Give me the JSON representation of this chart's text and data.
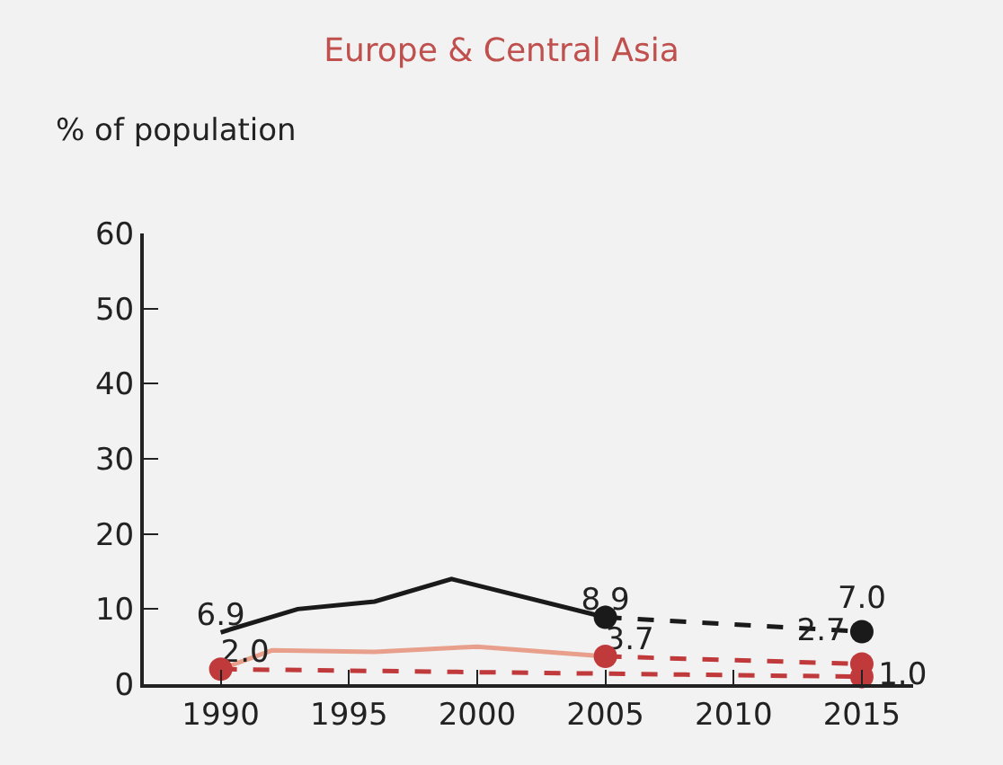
{
  "chart_data": {
    "type": "line",
    "title": "Europe & Central Asia",
    "ylabel": "% of population",
    "xlim": [
      1987,
      2017
    ],
    "xticks": [
      1990,
      1995,
      2000,
      2005,
      2010,
      2015
    ],
    "ylim": [
      0,
      60
    ],
    "yticks": [
      0,
      10,
      20,
      30,
      40,
      50,
      60
    ],
    "grid": false,
    "series": [
      {
        "color": "#1a1a1a",
        "line_style": "solid",
        "marker": "none",
        "x": [
          1990,
          1993,
          1996,
          1999,
          2005
        ],
        "values": [
          6.9,
          10,
          11,
          14,
          8.9
        ],
        "value_labels": [
          "6.9",
          null,
          null,
          null,
          "8.9"
        ]
      },
      {
        "color": "#1a1a1a",
        "line_style": "dashed",
        "marker": "circle",
        "x": [
          2005,
          2015
        ],
        "values": [
          8.9,
          7.0
        ],
        "value_labels": [
          null,
          "7.0"
        ]
      },
      {
        "color": "#e8a08c",
        "line_style": "solid",
        "marker": "none",
        "x": [
          1990,
          1992,
          1996,
          2000,
          2005
        ],
        "values": [
          2.0,
          4.5,
          4.3,
          5.0,
          3.7
        ],
        "value_labels": [
          "2.0",
          null,
          null,
          null,
          "3.7"
        ]
      },
      {
        "color": "#c0393b",
        "line_style": "dashed",
        "marker": "circle",
        "x": [
          2005,
          2015
        ],
        "values": [
          3.7,
          2.7
        ],
        "value_labels": [
          null,
          "2.7"
        ]
      },
      {
        "color": "#c0393b",
        "line_style": "dashed",
        "marker": "circle",
        "x": [
          1990,
          2015
        ],
        "values": [
          2.0,
          1.0
        ],
        "value_labels": [
          null,
          "1.0"
        ]
      }
    ]
  }
}
